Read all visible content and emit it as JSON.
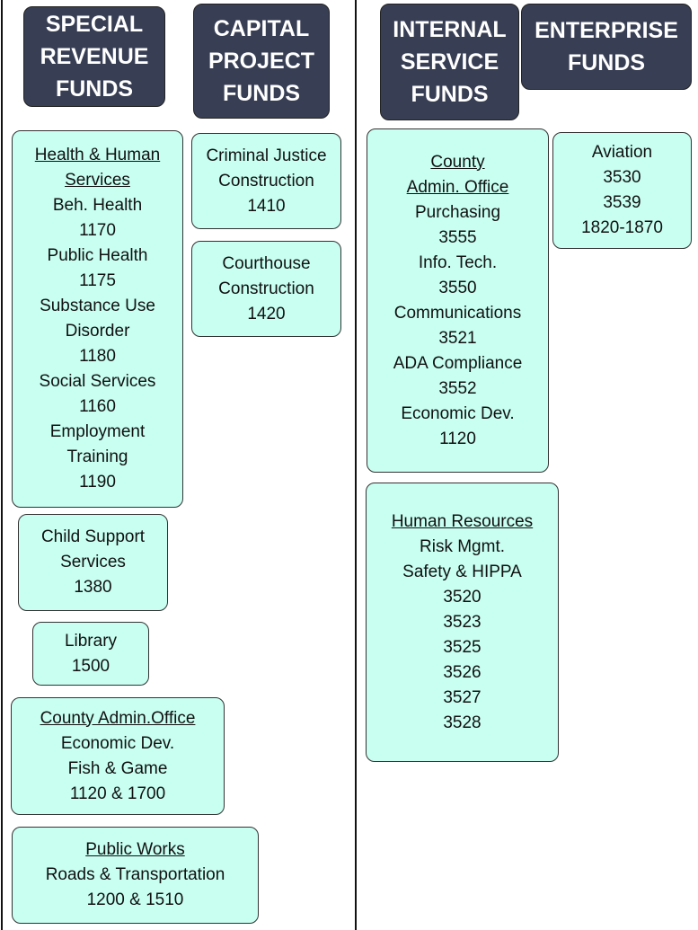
{
  "headers": [
    {
      "lines": [
        "SPECIAL",
        "REVENUE",
        "FUNDS"
      ]
    },
    {
      "lines": [
        "CAPITAL",
        "PROJECT",
        "FUNDS"
      ]
    },
    {
      "lines": [
        "INTERNAL",
        "SERVICE",
        "FUNDS"
      ]
    },
    {
      "lines": [
        "ENTERPRISE",
        "FUNDS"
      ]
    }
  ],
  "nodes": [
    {
      "heading": [
        "Health & Human",
        "Services"
      ],
      "lines": [
        "Beh. Health",
        "1170",
        "Public Health",
        "1175",
        "Substance Use",
        "Disorder",
        "1180",
        "Social Services",
        "1160",
        "Employment",
        "Training",
        "1190"
      ]
    },
    {
      "lines": [
        "Child Support",
        "Services",
        "1380"
      ]
    },
    {
      "lines": [
        "Library",
        "1500"
      ]
    },
    {
      "heading": [
        "County Admin.Office"
      ],
      "lines": [
        "Economic Dev.",
        "Fish & Game",
        "1120 & 1700"
      ]
    },
    {
      "heading": [
        "Public Works"
      ],
      "lines": [
        "Roads & Transportation",
        "1200 & 1510"
      ]
    },
    {
      "lines": [
        "Criminal Justice",
        "Construction",
        "1410"
      ]
    },
    {
      "lines": [
        "Courthouse",
        "Construction",
        "1420"
      ]
    },
    {
      "heading": [
        "County",
        "Admin. Office"
      ],
      "lines": [
        "Purchasing",
        "3555",
        "Info. Tech.",
        "3550",
        "Communications",
        "3521",
        "ADA Compliance",
        "3552",
        "Economic Dev.",
        "1120"
      ]
    },
    {
      "heading": [
        "Human Resources"
      ],
      "lines": [
        "Risk Mgmt.",
        "Safety & HIPPA",
        "3520",
        "3523",
        "3525",
        "3526",
        "3527",
        "3528"
      ]
    },
    {
      "lines": [
        "Aviation",
        "3530",
        "3539",
        "1820-1870"
      ]
    }
  ]
}
